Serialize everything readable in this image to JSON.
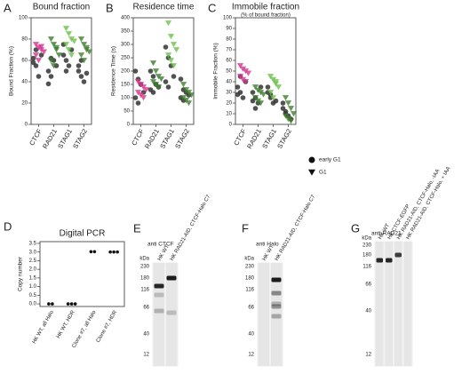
{
  "chart_data": [
    {
      "type": "scatter",
      "letter": "A",
      "title": "Bound fraction",
      "ylabel": "Bound Fraction (%)",
      "categories": [
        "CTCF",
        "RAD21",
        "STAG1",
        "STAG2"
      ],
      "ylim": [
        0,
        100
      ],
      "yticks": [
        0,
        20,
        40,
        60,
        80,
        100
      ],
      "legend": false,
      "series": [
        {
          "name": "early G1",
          "marker": "circle",
          "colors": [
            "#333333",
            "#333333",
            "#333333",
            "#333333"
          ],
          "values": [
            [
              62,
              55,
              45,
              65,
              58,
              70
            ],
            [
              50,
              45,
              60,
              55,
              38,
              62
            ],
            [
              65,
              60,
              55,
              70,
              75,
              50
            ],
            [
              50,
              45,
              40,
              48,
              55,
              60
            ]
          ]
        },
        {
          "name": "G1",
          "marker": "triangle",
          "colors": [
            "#d6338f",
            "#3a7d2c",
            "#6cc24a",
            "#3f7f2a"
          ],
          "values": [
            [
              75,
              72,
              70,
              68,
              65,
              60,
              73
            ],
            [
              80,
              75,
              70,
              65,
              60,
              55,
              72
            ],
            [
              90,
              85,
              80,
              78,
              75,
              70,
              65
            ],
            [
              80,
              75,
              70,
              68,
              65,
              60,
              72
            ]
          ]
        }
      ]
    },
    {
      "type": "scatter",
      "letter": "B",
      "title": "Residence time",
      "ylabel": "Residence Time (s)",
      "categories": [
        "CTCF",
        "RAD21",
        "STAG1",
        "STAG2"
      ],
      "ylim": [
        0,
        400
      ],
      "yticks": [
        0,
        50,
        100,
        150,
        200,
        250,
        300,
        350,
        400
      ],
      "legend": false,
      "series": [
        {
          "name": "early G1",
          "marker": "circle",
          "colors": [
            "#333333",
            "#333333",
            "#333333",
            "#333333"
          ],
          "values": [
            [
              200,
              170,
              150,
              120,
              100,
              80
            ],
            [
              200,
              180,
              150,
              140,
              130,
              120
            ],
            [
              290,
              250,
              220,
              180,
              160,
              140
            ],
            [
              170,
              130,
              120,
              110,
              100,
              90
            ]
          ]
        },
        {
          "name": "G1",
          "marker": "triangle",
          "colors": [
            "#d6338f",
            "#3a7d2c",
            "#6cc24a",
            "#3f7f2a"
          ],
          "values": [
            [
              160,
              150,
              140,
              130,
              120,
              110,
              100
            ],
            [
              230,
              200,
              180,
              170,
              160,
              150,
              140
            ],
            [
              380,
              330,
              300,
              280,
              260,
              240,
              220
            ],
            [
              150,
              130,
              120,
              110,
              100,
              90,
              80
            ]
          ]
        }
      ]
    },
    {
      "type": "scatter",
      "letter": "C",
      "title": "Immobile fraction",
      "subtitle": "(% of bound fraction)",
      "ylabel": "Immobile Fraction (%)",
      "categories": [
        "CTCF",
        "RAD21",
        "STAG1",
        "STAG2"
      ],
      "ylim": [
        0,
        100
      ],
      "yticks": [
        0,
        10,
        20,
        30,
        40,
        50,
        60,
        70,
        80,
        90,
        100
      ],
      "legend": true,
      "series": [
        {
          "name": "early G1",
          "marker": "circle",
          "colors": [
            "#333333",
            "#333333",
            "#333333",
            "#333333"
          ],
          "values": [
            [
              35,
              30,
              25,
              40,
              28,
              45
            ],
            [
              30,
              25,
              20,
              35,
              22,
              15
            ],
            [
              30,
              25,
              20,
              22,
              35,
              28
            ],
            [
              15,
              10,
              8,
              5,
              20,
              12
            ]
          ]
        },
        {
          "name": "G1",
          "marker": "triangle",
          "colors": [
            "#d6338f",
            "#3a7d2c",
            "#6cc24a",
            "#3f7f2a"
          ],
          "values": [
            [
              55,
              52,
              50,
              48,
              45,
              42,
              40
            ],
            [
              35,
              32,
              30,
              28,
              25,
              22,
              20
            ],
            [
              45,
              42,
              38,
              35,
              30,
              25,
              40
            ],
            [
              25,
              20,
              15,
              10,
              8,
              5,
              3
            ]
          ]
        }
      ]
    },
    {
      "type": "dot",
      "letter": "D",
      "title": "Digital PCR",
      "ylabel": "Copy number",
      "categories": [
        "HK WT, all Halo",
        "HK WT, HDR",
        "Clone #7, all Halo",
        "Clone #7, HDR"
      ],
      "ylim": [
        -0.15,
        3.6
      ],
      "yticks": [
        {
          "value": 0,
          "label": "0.0"
        },
        {
          "value": 0.5,
          "label": "0.5"
        },
        {
          "value": 1,
          "label": "1.0"
        },
        {
          "value": 1.5,
          "label": "1.5"
        },
        {
          "value": 2,
          "label": "2.0"
        },
        {
          "value": 2.5,
          "label": "2.5"
        },
        {
          "value": 3,
          "label": "3.0"
        },
        {
          "value": 3.5,
          "label": "3.5"
        }
      ],
      "color": "#111111",
      "values": [
        [
          0,
          0
        ],
        [
          0,
          0,
          0
        ],
        [
          3.02,
          3.02
        ],
        [
          3.0,
          3.0,
          3.0
        ]
      ]
    }
  ],
  "blots": [
    {
      "letter": "E",
      "title": "anti CTCF",
      "kda_label": "kDa",
      "markers": [
        "230",
        "180",
        "116",
        "66",
        "40",
        "12"
      ],
      "lanes": [
        "HK WT",
        "HK RAD21-AID, CTCF-Halo C7"
      ]
    },
    {
      "letter": "F",
      "title": "anti Halo",
      "kda_label": "kDa",
      "markers": [
        "230",
        "180",
        "116",
        "66",
        "40",
        "12"
      ],
      "lanes": [
        "HK WT",
        "HK RAD21-AID, CTCF-Halo C7"
      ]
    },
    {
      "letter": "G",
      "title": "anti-RAD21",
      "kda_label": "kDa",
      "markers": [
        "230",
        "180",
        "116",
        "66",
        "40",
        "12"
      ],
      "lanes": [
        "HK WT",
        "HK CTCF-EGFP",
        "HK RAD21-AID, CTCF-Halo, -IAA",
        "HK RAD21-AID, CTCF-Halo, + IAA"
      ]
    }
  ]
}
